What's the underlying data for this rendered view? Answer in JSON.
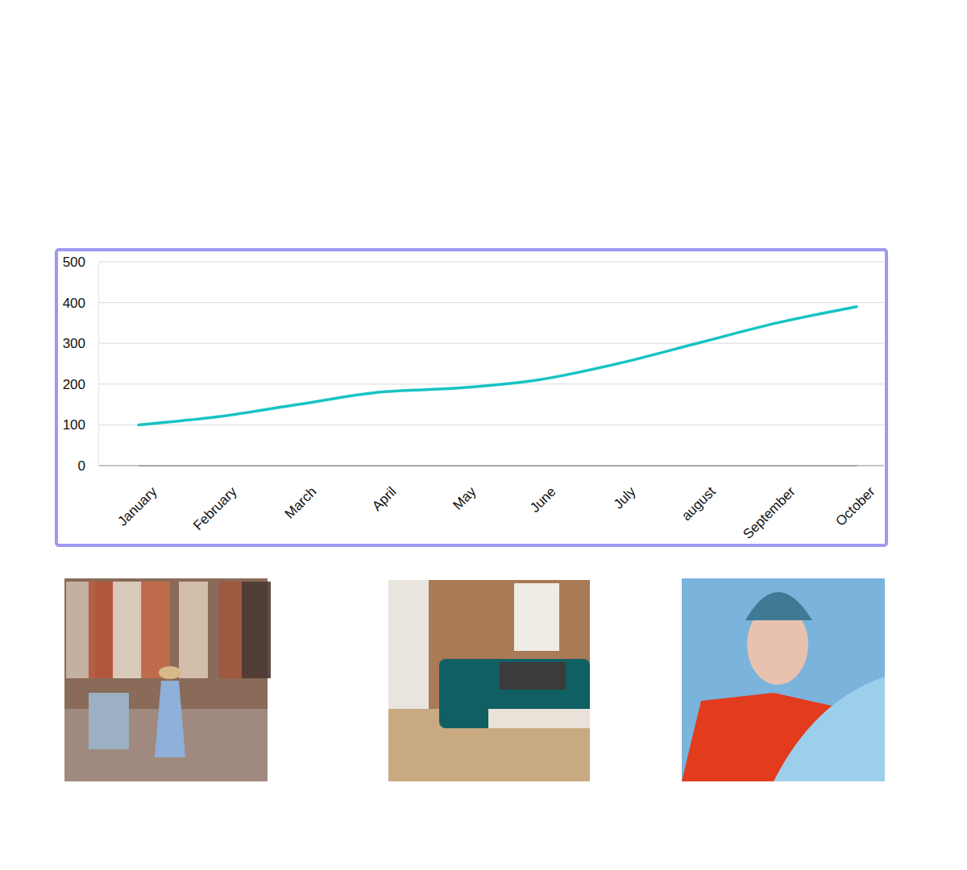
{
  "chart_data": {
    "type": "line",
    "categories": [
      "January",
      "February",
      "March",
      "April",
      "May",
      "June",
      "July",
      "august",
      "September",
      "October"
    ],
    "values": [
      100,
      120,
      150,
      180,
      190,
      210,
      250,
      300,
      350,
      390
    ],
    "color": "#17c3c3",
    "ylim": [
      0,
      500
    ],
    "yticks": [
      0,
      100,
      200,
      300,
      400,
      500
    ],
    "grid": true
  }
}
